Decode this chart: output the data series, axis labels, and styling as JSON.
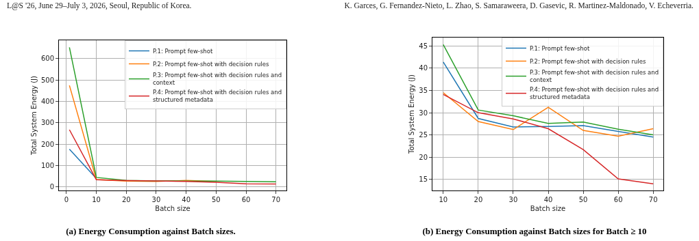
{
  "chart_data": [
    {
      "type": "line",
      "xlabel": "Batch size",
      "ylabel": "Total System Energy (J)",
      "x": [
        1,
        10,
        20,
        30,
        40,
        50,
        60,
        70
      ],
      "series": [
        {
          "name": "P.1: Prompt few-shot",
          "color": "#1f77b4",
          "values": [
            177,
            40,
            null,
            null,
            null,
            null,
            null,
            null
          ]
        },
        {
          "name": "P.2: Prompt few-shot with decision rules",
          "color": "#ff7f0e",
          "values": [
            475,
            35,
            28,
            26,
            31,
            26,
            null,
            null
          ]
        },
        {
          "name": "P.3: Prompt few-shot with decision rules and context",
          "color": "#2ca02c",
          "values": [
            653,
            45,
            31,
            29,
            28,
            28,
            26,
            25
          ]
        },
        {
          "name": "P.4: Prompt few-shot with decision rules and structured metadata",
          "color": "#d62728",
          "values": [
            268,
            34,
            30,
            29,
            26,
            22,
            15,
            14
          ]
        }
      ],
      "xlim": [
        -2.5,
        73.5
      ],
      "xticks": [
        0,
        10,
        20,
        30,
        40,
        50,
        60,
        70
      ],
      "ylim": [
        -16,
        686
      ],
      "yticks": [
        0,
        100,
        200,
        300,
        400,
        500,
        600
      ],
      "grid": true,
      "legend": "top right",
      "marker": "none",
      "line_style": "solid",
      "annotations": [
        "L@S '26, June 29–July 3, 2026, Seoul, Republic of Korea.",
        "(a) Energy Consumption against Batch sizes."
      ]
    },
    {
      "type": "line",
      "xlabel": "Batch size",
      "ylabel": "Total System Energy (J)",
      "x": [
        10,
        20,
        30,
        40,
        50,
        60,
        70
      ],
      "series": [
        {
          "name": "P.1: Prompt few-shot",
          "color": "#1f77b4",
          "values": [
            41.4,
            28.7,
            26.8,
            26.9,
            27.1,
            25.8,
            24.5
          ]
        },
        {
          "name": "P.2: Prompt few-shot with decision rules",
          "color": "#ff7f0e",
          "values": [
            34.5,
            28,
            26.2,
            31.2,
            26,
            24.7,
            26.4
          ]
        },
        {
          "name": "P.3: Prompt few-shot with decision rules and context",
          "color": "#2ca02c",
          "values": [
            45.3,
            30.6,
            29.3,
            27.6,
            27.9,
            26.3,
            25
          ]
        },
        {
          "name": "P.4: Prompt few-shot with decision rules and structured metadata",
          "color": "#d62728",
          "values": [
            34.1,
            30,
            28.6,
            26.4,
            21.7,
            15.1,
            14
          ]
        }
      ],
      "xlim": [
        6.9,
        72.9
      ],
      "xticks": [
        10,
        20,
        30,
        40,
        50,
        60,
        70
      ],
      "ylim": [
        12.5,
        46.9
      ],
      "yticks": [
        15,
        20,
        25,
        30,
        35,
        40,
        45
      ],
      "grid": true,
      "legend": "top right",
      "marker": "none",
      "line_style": "solid",
      "annotations": [
        "K. Garces, G. Fernandez-Nieto, L. Zhao, S. Samaraweera, D. Gasevic, R. Martinez-Maldonado, V. Echeverria.",
        "(b) Energy Consumption against Batch sizes for Batch ≥ 10"
      ]
    }
  ]
}
